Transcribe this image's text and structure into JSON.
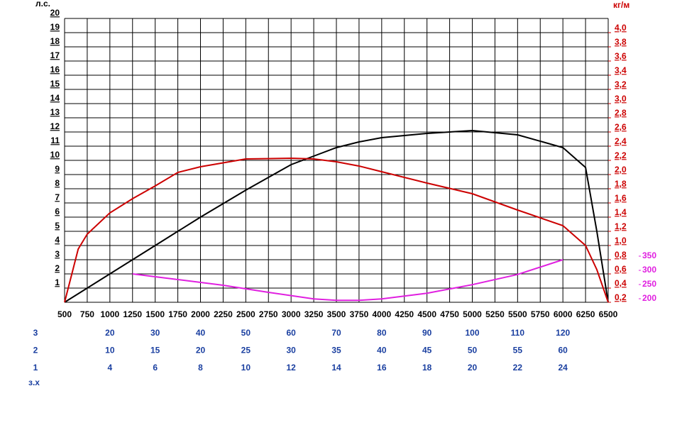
{
  "chart_data": {
    "type": "line",
    "y_label": "л.с.",
    "y2_label": "кг/м",
    "xlim": [
      500,
      6500
    ],
    "xticks": [
      500,
      750,
      1000,
      1250,
      1500,
      1750,
      2000,
      2250,
      2500,
      2750,
      3000,
      3250,
      3500,
      3750,
      4000,
      4250,
      4500,
      4750,
      5000,
      5250,
      5500,
      5750,
      6000,
      6250,
      6500
    ],
    "ylim": [
      0,
      20
    ],
    "yticks": [
      1,
      2,
      3,
      4,
      5,
      6,
      7,
      8,
      9,
      10,
      11,
      12,
      13,
      14,
      15,
      16,
      17,
      18,
      19,
      20
    ],
    "y2lim": [
      0.2,
      4.2
    ],
    "y2ticks": [
      {
        "value": 0.2,
        "label": "0,2"
      },
      {
        "value": 0.4,
        "label": "0,4"
      },
      {
        "value": 0.6,
        "label": "0,6"
      },
      {
        "value": 0.8,
        "label": "0,8"
      },
      {
        "value": 1.0,
        "label": "1,0"
      },
      {
        "value": 1.2,
        "label": "1,2"
      },
      {
        "value": 1.4,
        "label": "1,4"
      },
      {
        "value": 1.6,
        "label": "1,6"
      },
      {
        "value": 1.8,
        "label": "1,8"
      },
      {
        "value": 2.0,
        "label": "2,0"
      },
      {
        "value": 2.2,
        "label": "2,2"
      },
      {
        "value": 2.4,
        "label": "2,4"
      },
      {
        "value": 2.6,
        "label": "2,6"
      },
      {
        "value": 2.8,
        "label": "2,8"
      },
      {
        "value": 3.0,
        "label": "3,0"
      },
      {
        "value": 3.2,
        "label": "3,2"
      },
      {
        "value": 3.4,
        "label": "3,4"
      },
      {
        "value": 3.6,
        "label": "3,6"
      },
      {
        "value": 3.8,
        "label": "3,8"
      },
      {
        "value": 4.0,
        "label": "4,0"
      }
    ],
    "y2color": "#cc0000",
    "y3lim": [
      200,
      1200
    ],
    "y3ticks": [
      200,
      250,
      300,
      350
    ],
    "y3color": "#e020e0",
    "grid": true,
    "series": [
      {
        "color": "#000000",
        "axis": "y",
        "x": [
          500,
          1000,
          1500,
          2000,
          2500,
          3000,
          3250,
          3500,
          3750,
          4000,
          4500,
          5000,
          5500,
          6000,
          6250,
          6375,
          6500
        ],
        "values": [
          0,
          2,
          4,
          6,
          7.9,
          9.7,
          10.3,
          10.9,
          11.3,
          11.6,
          11.9,
          12.1,
          11.8,
          10.9,
          9.5,
          5,
          0
        ]
      },
      {
        "color": "#cc0000",
        "axis": "y2",
        "x": [
          500,
          650,
          750,
          1000,
          1250,
          1500,
          1750,
          2000,
          2500,
          3000,
          3250,
          3500,
          3750,
          4000,
          4500,
          5000,
          5500,
          6000,
          6250,
          6375,
          6500
        ],
        "values": [
          0.2,
          0.95,
          1.16,
          1.46,
          1.66,
          1.84,
          2.03,
          2.11,
          2.22,
          2.23,
          2.22,
          2.18,
          2.12,
          2.04,
          1.88,
          1.73,
          1.5,
          1.28,
          1.0,
          0.66,
          0.2
        ]
      },
      {
        "color": "#e020e0",
        "axis": "y3",
        "x": [
          1250,
          1750,
          2250,
          2750,
          3250,
          3500,
          3750,
          4000,
          4500,
          5000,
          5500,
          6000
        ],
        "values": [
          300,
          280,
          260,
          235,
          212,
          207,
          207,
          212,
          232,
          262,
          298,
          350
        ]
      }
    ],
    "gear_color": "#1a3fa0",
    "gear_scales": [
      {
        "label": "3",
        "x": [
          1000,
          1500,
          2000,
          2500,
          3000,
          3500,
          4000,
          4500,
          5000,
          5500,
          6000
        ],
        "values": [
          20,
          30,
          40,
          50,
          60,
          70,
          80,
          90,
          100,
          110,
          120
        ]
      },
      {
        "label": "2",
        "x": [
          1000,
          1500,
          2000,
          2500,
          3000,
          3500,
          4000,
          4500,
          5000,
          5500,
          6000
        ],
        "values": [
          10,
          15,
          20,
          25,
          30,
          35,
          40,
          45,
          50,
          55,
          60
        ]
      },
      {
        "label": "1",
        "x": [
          1000,
          1500,
          2000,
          2500,
          3000,
          3500,
          4000,
          4500,
          5000,
          5500,
          6000
        ],
        "values": [
          4,
          6,
          8,
          10,
          12,
          14,
          16,
          18,
          20,
          22,
          24
        ]
      }
    ],
    "footnote": "з.х"
  }
}
